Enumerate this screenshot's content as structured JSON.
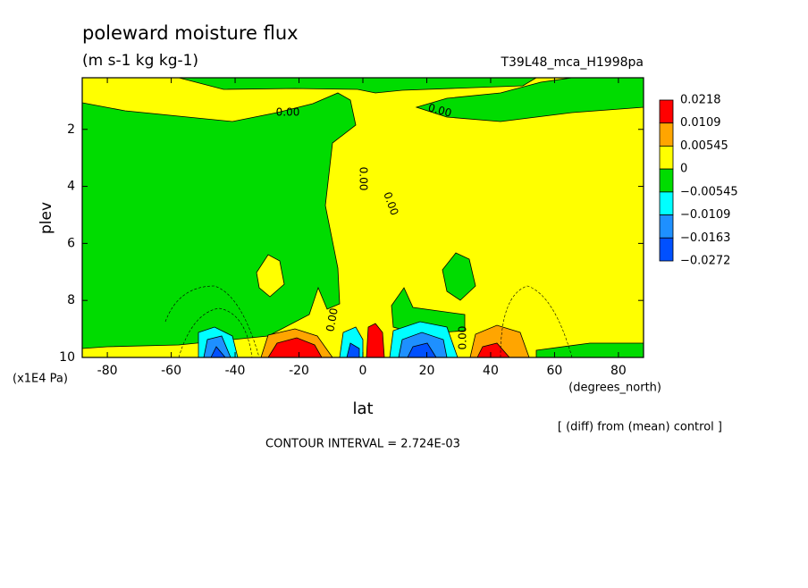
{
  "chart_data": {
    "type": "contour",
    "title": "poleward moisture flux",
    "subtitle": "(m s-1 kg kg-1)",
    "run_label": "T39L48_mca_H1998pa",
    "xlabel": "lat",
    "xunits": "(degrees_north)",
    "ylabel": "plev",
    "yunits": "(x1E4 Pa)",
    "xlim": [
      -87.86,
      87.86
    ],
    "xticks": [
      -80,
      -60,
      -40,
      -20,
      0,
      20,
      40,
      60,
      80
    ],
    "ylim": [
      10,
      0.19
    ],
    "y_inverted": true,
    "yticks": [
      2,
      4,
      6,
      8,
      10
    ],
    "colorbar": {
      "levels": [
        0.0218,
        0.0109,
        0.00545,
        0,
        {
          "value": -0.00545,
          "label": "−0.00545"
        },
        {
          "value": -0.0109,
          "label": "−0.0109"
        },
        {
          "value": -0.0163,
          "label": "−0.0163"
        },
        {
          "value": -0.0272,
          "label": "−0.0272"
        }
      ],
      "colors": [
        "#ff0000",
        "#ffa500",
        "#ffff00",
        "#00dc00",
        "#00ffff",
        "#1e90ff",
        "#0050ff"
      ]
    },
    "contour_labels": [
      "0.00",
      "0.00",
      "0.00",
      "0.00",
      "0.00",
      "0.00"
    ],
    "note": "[ (diff) from (mean) control ]",
    "contour_interval": "CONTOUR INTERVAL = 2.724E-03"
  }
}
